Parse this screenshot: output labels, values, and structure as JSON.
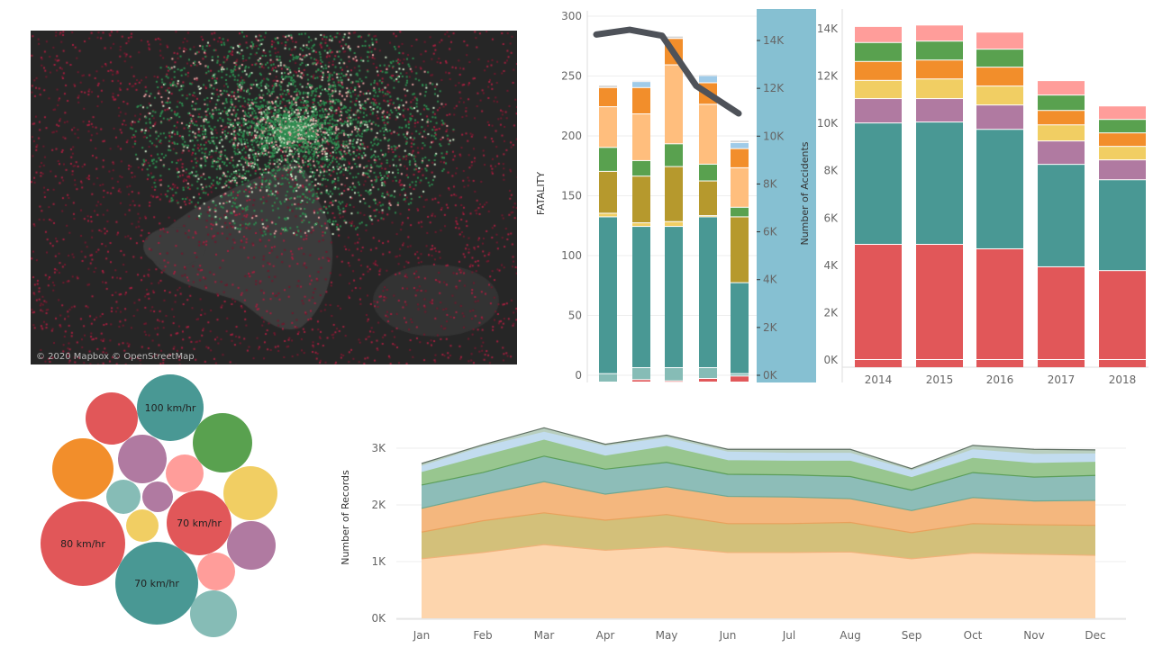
{
  "map": {
    "attribution": "© 2020 Mapbox © OpenStreetMap"
  },
  "colors": {
    "red": "#e15759",
    "lteal": "#86bcb6",
    "teal": "#499894",
    "yellow": "#f1ce63",
    "olive": "#b6992d",
    "green": "#59a14f",
    "lorange": "#ffbe7d",
    "orange": "#f28e2b",
    "lblue": "#a0cbe8",
    "gray": "#d4d4d4",
    "purple": "#b07aa1",
    "pink": "#ff9d9a",
    "panel": "#86c0d2",
    "line": "#4e5259"
  },
  "chart_data": [
    {
      "type": "bar",
      "name": "fatality-by-group",
      "ylabel": "FATALITY",
      "ylabel2": "Number of Accidents",
      "ylim": [
        0,
        300
      ],
      "yticks": [
        "0",
        "50",
        "100",
        "150",
        "200",
        "250",
        "300"
      ],
      "y2ticks": [
        "0K",
        "2K",
        "4K",
        "6K",
        "8K",
        "10K",
        "12K",
        "14K"
      ],
      "y2lim": [
        0,
        14000
      ],
      "segment_colors": [
        "red",
        "lteal",
        "teal",
        "yellow",
        "olive",
        "green",
        "lorange",
        "orange",
        "lblue",
        "gray"
      ],
      "bars": [
        [
          0,
          7,
          131,
          3,
          35,
          20,
          34,
          16,
          0,
          2
        ],
        [
          2,
          10,
          118,
          3,
          39,
          13,
          39,
          22,
          5,
          1
        ],
        [
          1,
          11,
          118,
          4,
          46,
          19,
          66,
          22,
          0,
          2
        ],
        [
          3,
          9,
          126,
          1,
          29,
          14,
          50,
          18,
          6,
          1
        ],
        [
          5,
          2,
          76,
          0,
          55,
          8,
          33,
          16,
          5,
          2
        ]
      ],
      "line_accidents": [
        14250,
        14450,
        14200,
        12100,
        10950
      ]
    },
    {
      "type": "bar",
      "name": "accidents-by-year",
      "categories": [
        "2014",
        "2015",
        "2016",
        "2017",
        "2018"
      ],
      "yticks": [
        "0K",
        "2K",
        "4K",
        "6K",
        "8K",
        "10K",
        "12K",
        "14K"
      ],
      "ylim": [
        0,
        14000
      ],
      "segment_colors": [
        "red",
        "teal",
        "purple",
        "yellow",
        "orange",
        "green",
        "pink"
      ],
      "series_values": [
        [
          4870,
          5130,
          1030,
          770,
          800,
          800,
          680
        ],
        [
          4870,
          5170,
          990,
          830,
          800,
          800,
          680
        ],
        [
          4680,
          5050,
          1030,
          800,
          800,
          760,
          720
        ],
        [
          3920,
          4330,
          990,
          680,
          610,
          650,
          610
        ],
        [
          3760,
          3840,
          840,
          570,
          570,
          570,
          570
        ]
      ]
    },
    {
      "type": "area",
      "name": "records-by-month",
      "ylabel": "Number of Records",
      "categories": [
        "Jan",
        "Feb",
        "Mar",
        "Apr",
        "May",
        "Jun",
        "Jul",
        "Aug",
        "Sep",
        "Oct",
        "Nov",
        "Dec"
      ],
      "yticks": [
        "0K",
        "1K",
        "2K",
        "3K"
      ],
      "ylim": [
        0,
        3000
      ],
      "stacked_tops": [
        {
          "color": "#fdd5ad",
          "stroke": "#f0b27a",
          "values": [
            1.05,
            1.16,
            1.3,
            1.2,
            1.26,
            1.16,
            1.16,
            1.17,
            1.05,
            1.15,
            1.13,
            1.11
          ]
        },
        {
          "color": "#d3c07a",
          "stroke": "#e8a15c",
          "values": [
            1.52,
            1.72,
            1.86,
            1.73,
            1.83,
            1.67,
            1.67,
            1.69,
            1.51,
            1.67,
            1.65,
            1.64
          ]
        },
        {
          "color": "#f4b77e",
          "stroke": "#6ea892",
          "values": [
            1.94,
            2.18,
            2.41,
            2.19,
            2.32,
            2.15,
            2.14,
            2.11,
            1.9,
            2.13,
            2.07,
            2.08
          ]
        },
        {
          "color": "#8dbdb8",
          "stroke": "#5c9e5a",
          "values": [
            2.35,
            2.57,
            2.86,
            2.63,
            2.75,
            2.54,
            2.53,
            2.5,
            2.26,
            2.57,
            2.49,
            2.52
          ]
        },
        {
          "color": "#98c68f",
          "stroke": "#98c68f",
          "values": [
            2.57,
            2.86,
            3.14,
            2.86,
            3.03,
            2.78,
            2.77,
            2.77,
            2.48,
            2.82,
            2.73,
            2.75
          ]
        },
        {
          "color": "#c2dcef",
          "stroke": "#c2dcef",
          "values": [
            2.68,
            3.02,
            3.28,
            3.03,
            3.18,
            2.93,
            2.91,
            2.91,
            2.6,
            2.97,
            2.89,
            2.9
          ]
        },
        {
          "color": "#b9cfbf",
          "stroke": "#5f6f63",
          "values": [
            2.73,
            3.06,
            3.36,
            3.07,
            3.23,
            2.98,
            2.98,
            2.98,
            2.64,
            3.05,
            2.98,
            2.97
          ]
        }
      ]
    }
  ],
  "bubbles": [
    {
      "color": "teal",
      "label": "100 km/hr"
    },
    {
      "color": "red",
      "label": ""
    },
    {
      "color": "green",
      "label": ""
    },
    {
      "color": "orange",
      "label": ""
    },
    {
      "color": "purple",
      "label": ""
    },
    {
      "color": "pink",
      "label": ""
    },
    {
      "color": "yellow",
      "label": ""
    },
    {
      "color": "lteal",
      "label": ""
    },
    {
      "color": "purple",
      "label": ""
    },
    {
      "color": "red",
      "label": "70 km/hr"
    },
    {
      "color": "red",
      "label": "80 km/hr"
    },
    {
      "color": "yellow",
      "label": ""
    },
    {
      "color": "purple",
      "label": ""
    },
    {
      "color": "teal",
      "label": "70 km/hr"
    },
    {
      "color": "pink",
      "label": ""
    },
    {
      "color": "lteal",
      "label": ""
    }
  ]
}
